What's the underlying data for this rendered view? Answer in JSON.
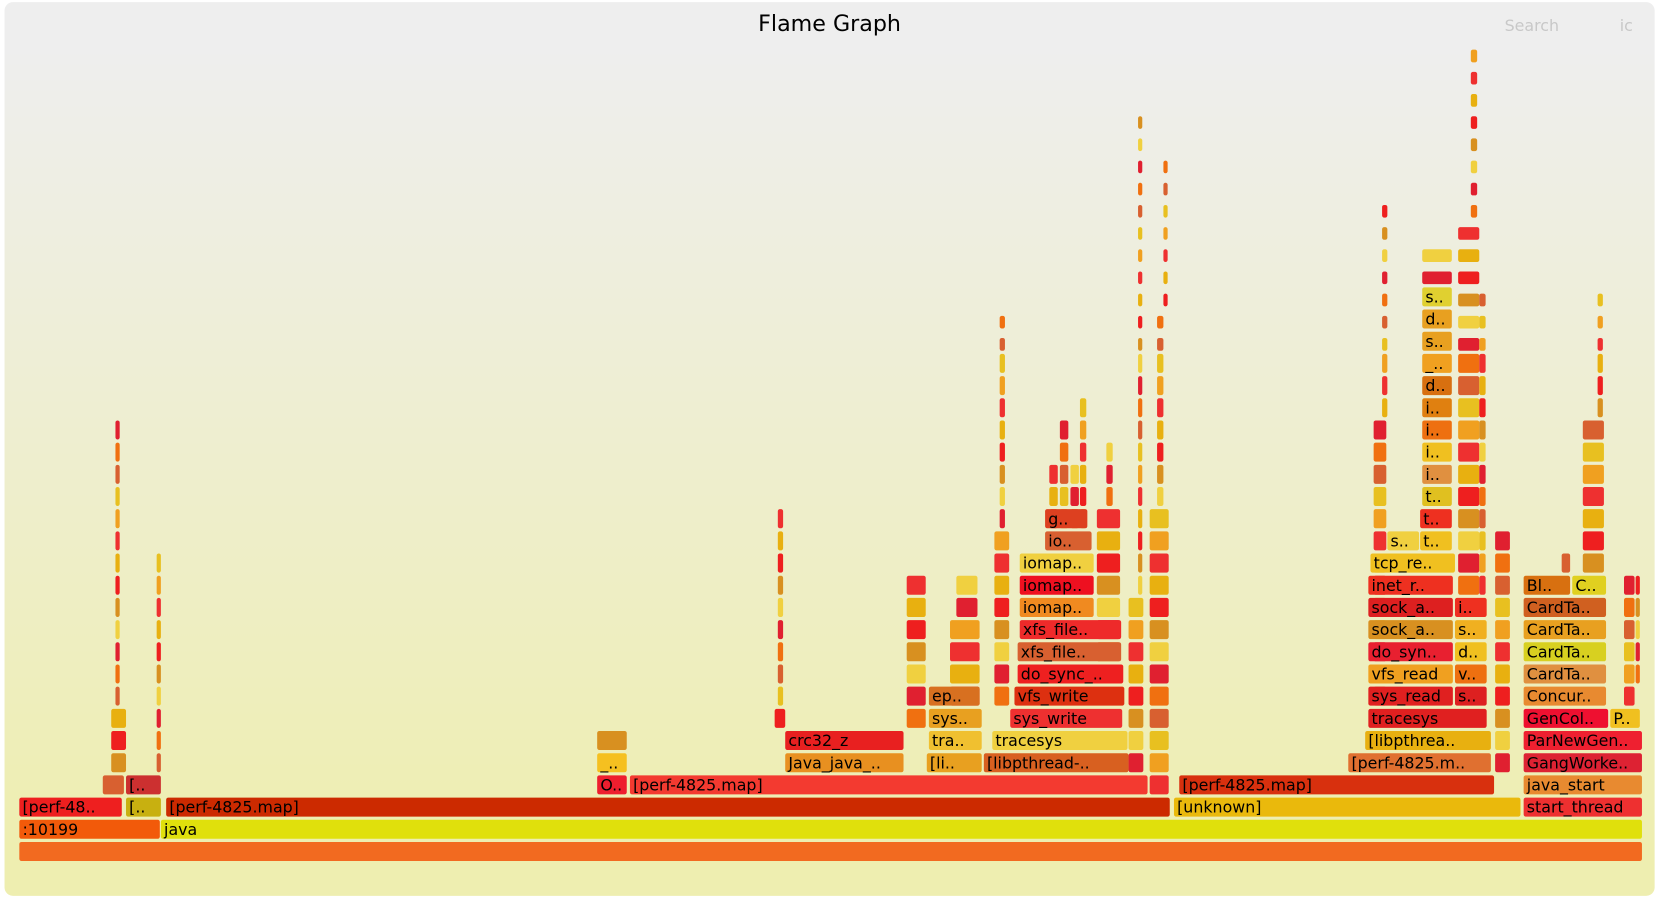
{
  "header": {
    "title": "Flame Graph",
    "search": "Search",
    "reset": "ic"
  },
  "frames": [
    ":10199",
    "java",
    "[perf-48..",
    "[..",
    "[perf-4825.map]",
    "[unknown]",
    "start_thread",
    "O..",
    "[perf-4825.map]",
    "[perf-4825.map]",
    "java_start",
    "[..",
    "_..",
    "Java_java_..",
    "[li..",
    "[libpthread-..",
    "[perf-4825.m..",
    "GangWorke..",
    "crc32_z",
    "tra..",
    "tracesys",
    "[libpthrea..",
    "ParNewGen..",
    "sys..",
    "sys_write",
    "tracesys",
    "GenCol..",
    "P..",
    "ep..",
    "vfs_write",
    "sys_read",
    "s..",
    "Concur..",
    "do_sync_..",
    "vfs_read",
    "v..",
    "CardTa..",
    "xfs_file..",
    "do_syn..",
    "d..",
    "CardTa..",
    "xfs_file..",
    "sock_a..",
    "s..",
    "CardTa..",
    "iomap..",
    "sock_a..",
    "i..",
    "CardTa..",
    "iomap..",
    "inet_r..",
    "Bl..",
    "C..",
    "iomap..",
    "tcp_re..",
    "io..",
    "s..",
    "t..",
    "g..",
    "t..",
    "t..",
    "i..",
    "i..",
    "i..",
    "i..",
    "d..",
    "_..",
    "s..",
    "d..",
    "s.."
  ]
}
